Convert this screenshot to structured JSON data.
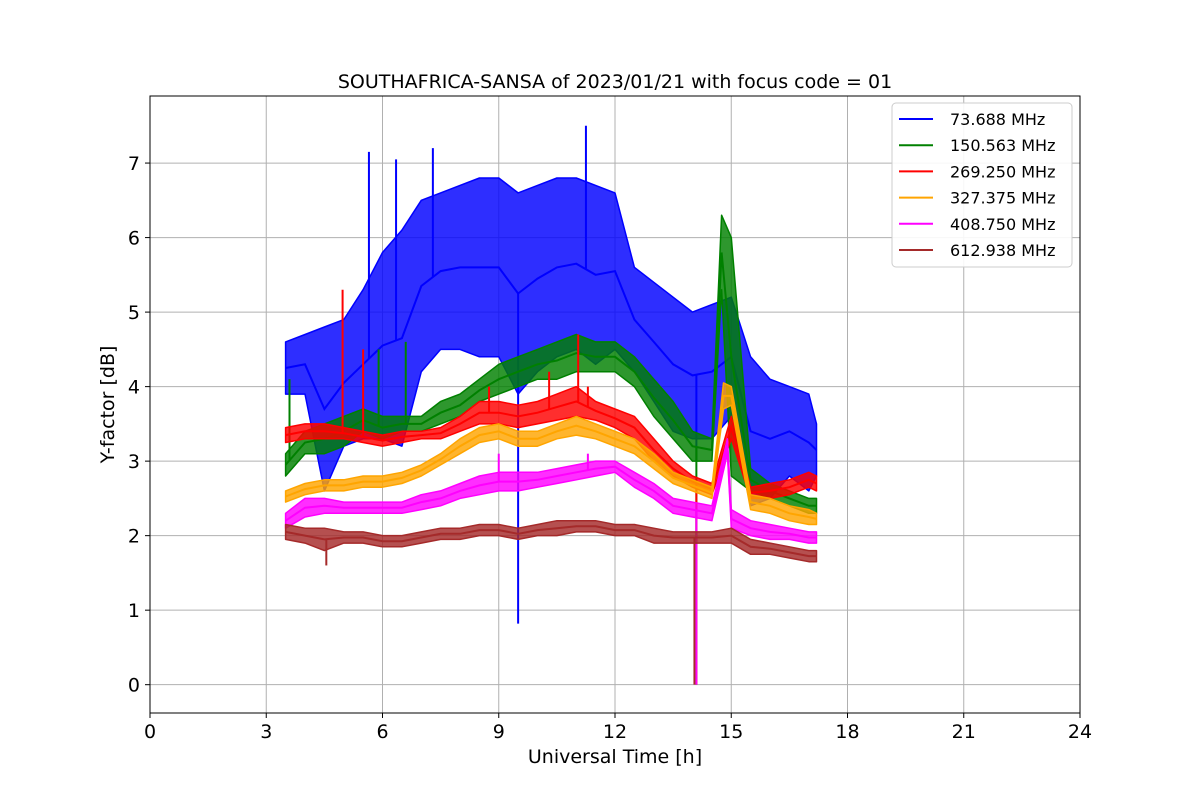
{
  "chart_data": {
    "type": "line",
    "title": "SOUTHAFRICA-SANSA of 2023/01/21 with focus code = 01",
    "xlabel": "Universal Time [h]",
    "ylabel": "Y-factor [dB]",
    "xlim": [
      0,
      24
    ],
    "ylim": [
      -0.38,
      7.9
    ],
    "xticks": [
      0,
      3,
      6,
      9,
      12,
      15,
      18,
      21,
      24
    ],
    "yticks": [
      0,
      1,
      2,
      3,
      4,
      5,
      6,
      7
    ],
    "grid": true,
    "legend_position": "top-right",
    "series": [
      {
        "name": " 73.688 MHz",
        "color": "#0000ff",
        "x": [
          3.5,
          4.0,
          4.5,
          5.0,
          5.5,
          6.0,
          6.5,
          7.0,
          7.5,
          8.0,
          8.5,
          9.0,
          9.5,
          10.0,
          10.5,
          11.0,
          11.5,
          12.0,
          12.5,
          13.0,
          13.5,
          14.0,
          14.5,
          15.0,
          15.5,
          16.0,
          16.5,
          17.0,
          17.2
        ],
        "low": [
          3.9,
          3.9,
          2.6,
          3.2,
          3.3,
          3.3,
          3.2,
          4.2,
          4.5,
          4.5,
          4.4,
          4.4,
          3.9,
          4.2,
          4.4,
          4.5,
          4.3,
          4.5,
          4.2,
          3.8,
          3.4,
          3.3,
          3.3,
          3.6,
          2.4,
          2.5,
          2.8,
          2.6,
          2.8
        ],
        "high": [
          4.6,
          4.7,
          4.8,
          4.9,
          5.3,
          5.8,
          6.1,
          6.5,
          6.6,
          6.7,
          6.8,
          6.8,
          6.6,
          6.7,
          6.8,
          6.8,
          6.7,
          6.6,
          5.6,
          5.4,
          5.2,
          5.0,
          5.1,
          5.2,
          4.4,
          4.1,
          4.0,
          3.9,
          3.5
        ],
        "spikes": [
          [
            5.65,
            7.15
          ],
          [
            6.35,
            7.05
          ],
          [
            7.3,
            7.2
          ],
          [
            9.5,
            0.82
          ],
          [
            11.25,
            7.5
          ],
          [
            14.1,
            3.0
          ]
        ]
      },
      {
        "name": "150.563 MHz",
        "color": "#008000",
        "x": [
          3.5,
          4.0,
          4.5,
          5.0,
          5.5,
          6.0,
          6.5,
          7.0,
          7.5,
          8.0,
          8.5,
          9.0,
          9.5,
          10.0,
          10.5,
          11.0,
          11.5,
          12.0,
          12.5,
          13.0,
          13.5,
          14.0,
          14.5,
          14.75,
          15.0,
          15.5,
          16.0,
          16.5,
          17.0,
          17.2
        ],
        "low": [
          2.8,
          3.1,
          3.1,
          3.2,
          3.4,
          3.3,
          3.4,
          3.4,
          3.5,
          3.6,
          3.8,
          3.9,
          4.0,
          4.1,
          4.1,
          4.2,
          4.2,
          4.2,
          4.0,
          3.6,
          3.3,
          3.0,
          3.0,
          5.3,
          2.8,
          2.6,
          2.5,
          2.4,
          2.3,
          2.3
        ],
        "high": [
          3.1,
          3.4,
          3.5,
          3.6,
          3.7,
          3.6,
          3.6,
          3.6,
          3.8,
          3.9,
          4.1,
          4.3,
          4.4,
          4.5,
          4.6,
          4.7,
          4.6,
          4.6,
          4.4,
          4.1,
          3.8,
          3.4,
          3.3,
          6.3,
          6.0,
          2.9,
          2.7,
          2.6,
          2.5,
          2.5
        ],
        "spikes": [
          [
            3.6,
            4.1
          ],
          [
            5.9,
            4.5
          ],
          [
            6.6,
            4.6
          ],
          [
            14.1,
            0.0
          ]
        ]
      },
      {
        "name": "269.250 MHz",
        "color": "#ff0000",
        "x": [
          3.5,
          4.0,
          4.5,
          5.0,
          5.5,
          6.0,
          6.5,
          7.0,
          7.5,
          8.0,
          8.5,
          9.0,
          9.5,
          10.0,
          10.5,
          11.0,
          11.5,
          12.0,
          12.5,
          13.0,
          13.5,
          14.0,
          14.5,
          15.0,
          15.5,
          16.0,
          16.5,
          17.0,
          17.2
        ],
        "low": [
          3.25,
          3.3,
          3.3,
          3.3,
          3.25,
          3.2,
          3.25,
          3.3,
          3.3,
          3.4,
          3.5,
          3.5,
          3.45,
          3.5,
          3.55,
          3.6,
          3.55,
          3.45,
          3.3,
          3.0,
          2.8,
          2.65,
          2.55,
          3.3,
          2.5,
          2.5,
          2.55,
          2.65,
          2.6
        ],
        "high": [
          3.45,
          3.5,
          3.5,
          3.45,
          3.4,
          3.35,
          3.4,
          3.4,
          3.45,
          3.6,
          3.8,
          3.8,
          3.75,
          3.8,
          3.9,
          4.0,
          3.8,
          3.7,
          3.6,
          3.3,
          3.0,
          2.8,
          2.7,
          3.6,
          2.65,
          2.7,
          2.75,
          2.85,
          2.8
        ],
        "spikes": [
          [
            4.97,
            5.3
          ],
          [
            5.5,
            4.5
          ],
          [
            8.75,
            4.0
          ],
          [
            10.3,
            4.2
          ],
          [
            11.05,
            4.7
          ],
          [
            11.3,
            4.0
          ],
          [
            14.1,
            0.0
          ]
        ]
      },
      {
        "name": "327.375 MHz",
        "color": "#ffa500",
        "x": [
          3.5,
          4.0,
          4.5,
          5.0,
          5.5,
          6.0,
          6.5,
          7.0,
          7.5,
          8.0,
          8.5,
          9.0,
          9.5,
          10.0,
          10.5,
          11.0,
          11.5,
          12.0,
          12.5,
          13.0,
          13.5,
          14.0,
          14.5,
          14.8,
          15.0,
          15.5,
          16.0,
          16.5,
          17.0,
          17.2
        ],
        "low": [
          2.45,
          2.55,
          2.6,
          2.6,
          2.65,
          2.65,
          2.7,
          2.8,
          2.95,
          3.1,
          3.25,
          3.3,
          3.2,
          3.2,
          3.3,
          3.35,
          3.3,
          3.2,
          3.1,
          2.9,
          2.7,
          2.6,
          2.5,
          3.7,
          3.75,
          2.35,
          2.3,
          2.2,
          2.15,
          2.15
        ],
        "high": [
          2.6,
          2.7,
          2.75,
          2.75,
          2.8,
          2.8,
          2.85,
          2.95,
          3.1,
          3.3,
          3.45,
          3.5,
          3.4,
          3.4,
          3.5,
          3.6,
          3.5,
          3.4,
          3.3,
          3.1,
          2.85,
          2.75,
          2.65,
          4.05,
          4.0,
          2.55,
          2.5,
          2.4,
          2.35,
          2.3
        ],
        "spikes": []
      },
      {
        "name": "408.750 MHz",
        "color": "#ff00ff",
        "x": [
          3.5,
          4.0,
          4.5,
          5.0,
          5.5,
          6.0,
          6.5,
          7.0,
          7.5,
          8.0,
          8.5,
          9.0,
          9.5,
          10.0,
          10.5,
          11.0,
          11.5,
          12.0,
          12.5,
          13.0,
          13.5,
          14.0,
          14.5,
          14.9,
          15.0,
          15.5,
          16.0,
          16.5,
          17.0,
          17.2
        ],
        "low": [
          2.1,
          2.25,
          2.3,
          2.3,
          2.3,
          2.3,
          2.3,
          2.35,
          2.4,
          2.5,
          2.55,
          2.6,
          2.6,
          2.65,
          2.7,
          2.75,
          2.8,
          2.85,
          2.65,
          2.5,
          2.3,
          2.25,
          2.2,
          3.1,
          2.1,
          2.0,
          1.95,
          1.95,
          1.9,
          1.9
        ],
        "high": [
          2.3,
          2.5,
          2.5,
          2.45,
          2.45,
          2.45,
          2.45,
          2.55,
          2.6,
          2.7,
          2.8,
          2.85,
          2.85,
          2.85,
          2.9,
          2.95,
          3.0,
          3.0,
          2.85,
          2.7,
          2.5,
          2.45,
          2.4,
          3.3,
          2.35,
          2.2,
          2.15,
          2.1,
          2.05,
          2.05
        ],
        "spikes": [
          [
            9.0,
            3.1
          ],
          [
            11.3,
            3.1
          ],
          [
            14.1,
            0.0
          ]
        ]
      },
      {
        "name": "612.938 MHz",
        "color": "#a52a2a",
        "x": [
          3.5,
          4.0,
          4.5,
          5.0,
          5.5,
          6.0,
          6.5,
          7.0,
          7.5,
          8.0,
          8.5,
          9.0,
          9.5,
          10.0,
          10.5,
          11.0,
          11.5,
          12.0,
          12.5,
          13.0,
          13.5,
          14.0,
          14.5,
          15.0,
          15.5,
          16.0,
          16.5,
          17.0,
          17.2
        ],
        "low": [
          1.95,
          1.9,
          1.8,
          1.9,
          1.9,
          1.85,
          1.85,
          1.9,
          1.95,
          1.95,
          2.0,
          2.0,
          1.95,
          2.0,
          2.0,
          2.05,
          2.05,
          2.0,
          2.0,
          1.9,
          1.9,
          1.9,
          1.9,
          1.9,
          1.75,
          1.75,
          1.7,
          1.65,
          1.65
        ],
        "high": [
          2.15,
          2.1,
          2.1,
          2.05,
          2.05,
          2.0,
          2.0,
          2.05,
          2.1,
          2.1,
          2.15,
          2.15,
          2.1,
          2.15,
          2.2,
          2.2,
          2.2,
          2.15,
          2.15,
          2.1,
          2.05,
          2.05,
          2.05,
          2.1,
          1.95,
          1.9,
          1.85,
          1.8,
          1.8
        ],
        "spikes": [
          [
            4.55,
            1.6
          ],
          [
            14.05,
            0.0
          ]
        ]
      }
    ]
  }
}
